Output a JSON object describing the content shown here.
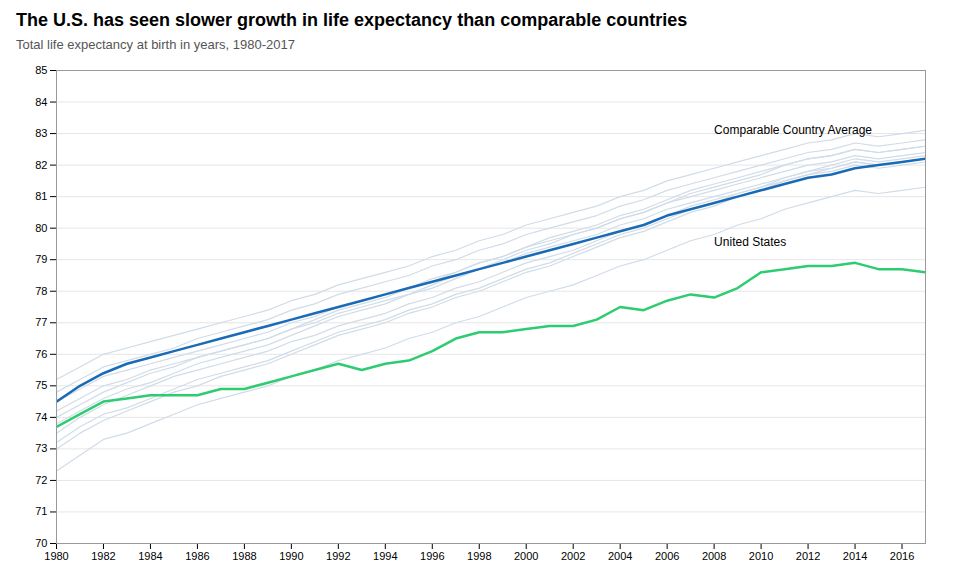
{
  "chart_data": {
    "type": "line",
    "title": "The U.S. has seen slower growth in life expectancy than comparable countries",
    "subtitle": "Total life expectancy at birth in years, 1980-2017",
    "x": [
      1980,
      1981,
      1982,
      1983,
      1984,
      1985,
      1986,
      1987,
      1988,
      1989,
      1990,
      1991,
      1992,
      1993,
      1994,
      1995,
      1996,
      1997,
      1998,
      1999,
      2000,
      2001,
      2002,
      2003,
      2004,
      2005,
      2006,
      2007,
      2008,
      2009,
      2010,
      2011,
      2012,
      2013,
      2014,
      2015,
      2016,
      2017
    ],
    "series": [
      {
        "color": "#d0dce8",
        "values": [
          72.3,
          72.8,
          73.3,
          73.5,
          73.8,
          74.1,
          74.4,
          74.6,
          74.8,
          75.0,
          75.3,
          75.5,
          75.8,
          76.0,
          76.2,
          76.5,
          76.7,
          77.0,
          77.2,
          77.5,
          77.8,
          78.0,
          78.2,
          78.5,
          78.8,
          79.0,
          79.3,
          79.6,
          79.8,
          80.1,
          80.3,
          80.6,
          80.8,
          81.0,
          81.2,
          81.1,
          81.2,
          81.3
        ]
      },
      {
        "color": "#d0dce8",
        "values": [
          74.2,
          74.6,
          75.0,
          75.2,
          75.5,
          75.7,
          75.9,
          76.1,
          76.3,
          76.5,
          76.8,
          77.0,
          77.3,
          77.5,
          77.7,
          77.9,
          78.2,
          78.5,
          78.7,
          78.9,
          79.2,
          79.4,
          79.6,
          79.8,
          80.1,
          80.3,
          80.6,
          80.8,
          81.0,
          81.2,
          81.4,
          81.6,
          81.8,
          81.9,
          82.1,
          82.0,
          82.1,
          82.2
        ]
      },
      {
        "color": "#d0dce8",
        "values": [
          73.5,
          74.0,
          74.4,
          74.7,
          75.0,
          75.3,
          75.5,
          75.7,
          75.9,
          76.1,
          76.4,
          76.6,
          76.9,
          77.1,
          77.3,
          77.6,
          77.8,
          78.1,
          78.3,
          78.6,
          78.9,
          79.1,
          79.3,
          79.6,
          79.9,
          80.1,
          80.4,
          80.7,
          80.9,
          81.1,
          81.3,
          81.5,
          81.7,
          81.8,
          82.0,
          81.9,
          82.0,
          82.1
        ]
      },
      {
        "color": "#d0dce8",
        "values": [
          74.8,
          75.2,
          75.6,
          75.8,
          76.0,
          76.2,
          76.5,
          76.7,
          76.9,
          77.1,
          77.4,
          77.6,
          77.9,
          78.1,
          78.3,
          78.5,
          78.8,
          79.0,
          79.3,
          79.5,
          79.8,
          80.0,
          80.2,
          80.4,
          80.7,
          80.9,
          81.2,
          81.4,
          81.6,
          81.8,
          82.0,
          82.2,
          82.4,
          82.5,
          82.7,
          82.6,
          82.7,
          82.8
        ]
      },
      {
        "color": "#d0dce8",
        "values": [
          73.0,
          73.5,
          73.9,
          74.2,
          74.5,
          74.8,
          75.0,
          75.3,
          75.5,
          75.7,
          76.0,
          76.3,
          76.6,
          76.8,
          77.0,
          77.3,
          77.5,
          77.8,
          78.0,
          78.3,
          78.6,
          78.8,
          79.1,
          79.4,
          79.7,
          79.9,
          80.2,
          80.5,
          80.7,
          81.0,
          81.2,
          81.5,
          81.7,
          81.9,
          82.1,
          82.0,
          82.1,
          82.2
        ]
      },
      {
        "color": "#d0dce8",
        "values": [
          75.2,
          75.6,
          76.0,
          76.2,
          76.4,
          76.6,
          76.8,
          77.0,
          77.2,
          77.4,
          77.7,
          77.9,
          78.2,
          78.4,
          78.6,
          78.8,
          79.1,
          79.3,
          79.6,
          79.8,
          80.1,
          80.3,
          80.5,
          80.7,
          81.0,
          81.2,
          81.5,
          81.7,
          81.9,
          82.1,
          82.3,
          82.5,
          82.7,
          82.8,
          83.0,
          82.9,
          83.0,
          83.1
        ]
      },
      {
        "color": "#d0dce8",
        "values": [
          73.8,
          74.2,
          74.6,
          74.9,
          75.1,
          75.4,
          75.7,
          75.9,
          76.1,
          76.3,
          76.6,
          76.9,
          77.2,
          77.4,
          77.6,
          77.9,
          78.1,
          78.4,
          78.7,
          79.0,
          79.3,
          79.5,
          79.8,
          80.0,
          80.3,
          80.5,
          80.8,
          81.1,
          81.3,
          81.5,
          81.7,
          82.0,
          82.2,
          82.3,
          82.5,
          82.4,
          82.5,
          82.6
        ]
      },
      {
        "color": "#d0dce8",
        "values": [
          74.5,
          74.9,
          75.3,
          75.5,
          75.7,
          75.9,
          76.1,
          76.3,
          76.5,
          76.7,
          77.0,
          77.2,
          77.5,
          77.7,
          77.9,
          78.1,
          78.4,
          78.6,
          78.9,
          79.1,
          79.4,
          79.6,
          79.8,
          80.0,
          80.3,
          80.5,
          80.8,
          81.0,
          81.2,
          81.4,
          81.6,
          81.8,
          82.0,
          82.1,
          82.3,
          82.2,
          82.3,
          82.4
        ]
      },
      {
        "color": "#d0dce8",
        "values": [
          73.2,
          73.7,
          74.1,
          74.3,
          74.6,
          74.9,
          75.2,
          75.4,
          75.6,
          75.8,
          76.1,
          76.4,
          76.7,
          76.9,
          77.1,
          77.4,
          77.6,
          77.9,
          78.1,
          78.4,
          78.7,
          78.9,
          79.2,
          79.5,
          79.8,
          80.0,
          80.3,
          80.6,
          80.8,
          81.1,
          81.3,
          81.6,
          81.8,
          82.0,
          82.2,
          82.1,
          82.2,
          82.3
        ]
      },
      {
        "color": "#d0dce8",
        "values": [
          74.0,
          74.4,
          74.8,
          75.1,
          75.4,
          75.6,
          75.9,
          76.1,
          76.3,
          76.5,
          76.8,
          77.1,
          77.4,
          77.6,
          77.8,
          78.1,
          78.3,
          78.6,
          78.9,
          79.1,
          79.4,
          79.7,
          79.9,
          80.1,
          80.4,
          80.6,
          80.9,
          81.2,
          81.4,
          81.6,
          81.8,
          82.0,
          82.2,
          82.3,
          82.5,
          82.4,
          82.5,
          82.6
        ]
      },
      {
        "name": "Comparable Country Average",
        "color": "#1a6bb5",
        "values": [
          74.5,
          75.0,
          75.4,
          75.7,
          75.9,
          76.1,
          76.3,
          76.5,
          76.7,
          76.9,
          77.1,
          77.3,
          77.5,
          77.7,
          77.9,
          78.1,
          78.3,
          78.5,
          78.7,
          78.9,
          79.1,
          79.3,
          79.5,
          79.7,
          79.9,
          80.1,
          80.4,
          80.6,
          80.8,
          81.0,
          81.2,
          81.4,
          81.6,
          81.7,
          81.9,
          82.0,
          82.1,
          82.2
        ]
      },
      {
        "name": "United States",
        "color": "#2ecc71",
        "values": [
          73.7,
          74.1,
          74.5,
          74.6,
          74.7,
          74.7,
          74.7,
          74.9,
          74.9,
          75.1,
          75.3,
          75.5,
          75.7,
          75.5,
          75.7,
          75.8,
          76.1,
          76.5,
          76.7,
          76.7,
          76.8,
          76.9,
          76.9,
          77.1,
          77.5,
          77.4,
          77.7,
          77.9,
          77.8,
          78.1,
          78.6,
          78.7,
          78.8,
          78.8,
          78.9,
          78.7,
          78.7,
          78.6
        ]
      }
    ],
    "annotations": [
      {
        "text": "Comparable Country Average",
        "x": 2008,
        "y": 83.1
      },
      {
        "text": "United States",
        "x": 2008,
        "y": 79.55
      }
    ],
    "xlim": [
      1980,
      2017
    ],
    "xticks": [
      1980,
      1982,
      1984,
      1986,
      1988,
      1990,
      1992,
      1994,
      1996,
      1998,
      2000,
      2002,
      2004,
      2006,
      2008,
      2010,
      2012,
      2014,
      2016
    ],
    "ylim": [
      70,
      85
    ],
    "yticks": [
      70,
      71,
      72,
      73,
      74,
      75,
      76,
      77,
      78,
      79,
      80,
      81,
      82,
      83,
      84,
      85
    ],
    "grid": true
  }
}
